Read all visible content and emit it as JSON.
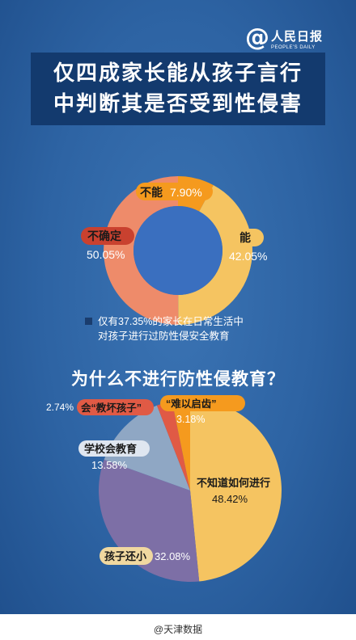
{
  "brand": {
    "symbol": "@",
    "cn": "人民日报",
    "en": "PEOPLE'S DAILY"
  },
  "title_lines": [
    "仅四成家长能从孩子言行",
    "中判断其是否受到性侵害"
  ],
  "subtitle": "为什么不进行防性侵教育？",
  "note_lines": [
    "仅有37.35%的家长在日常生活中",
    "对孩子进行过防性侵安全教育"
  ],
  "footer": "@天津数据",
  "colors": {
    "yellow": "#f5c461",
    "salmon": "#ee8b6a",
    "orange": "#f59a1e",
    "purple": "#7d6fa6",
    "blue": "#8fa7c4",
    "red": "#e05a45",
    "center": "#3a6fbf",
    "dark_blue": "#1a3d6e"
  },
  "chart_data": [
    {
      "type": "pie",
      "variant": "donut",
      "slices": [
        {
          "label": "能",
          "value": 42.05,
          "display": "42.05%",
          "color": "#f5c461"
        },
        {
          "label": "不确定",
          "value": 50.05,
          "display": "50.05%",
          "color": "#ee8b6a"
        },
        {
          "label": "不能",
          "value": 7.9,
          "display": "7.90%",
          "color": "#f59a1e"
        }
      ]
    },
    {
      "type": "pie",
      "slices": [
        {
          "label": "不知道如何进行",
          "value": 48.42,
          "display": "48.42%",
          "color": "#f5c461"
        },
        {
          "label": "孩子还小",
          "value": 32.08,
          "display": "32.08%",
          "color": "#7d6fa6"
        },
        {
          "label": "学校会教育",
          "value": 13.58,
          "display": "13.58%",
          "color": "#8fa7c4"
        },
        {
          "label": "会“教坏孩子”",
          "value": 2.74,
          "display": "2.74%",
          "color": "#e05a45"
        },
        {
          "label": "“难以启齿”",
          "value": 3.18,
          "display": "3.18%",
          "color": "#f59a1e"
        }
      ]
    }
  ]
}
